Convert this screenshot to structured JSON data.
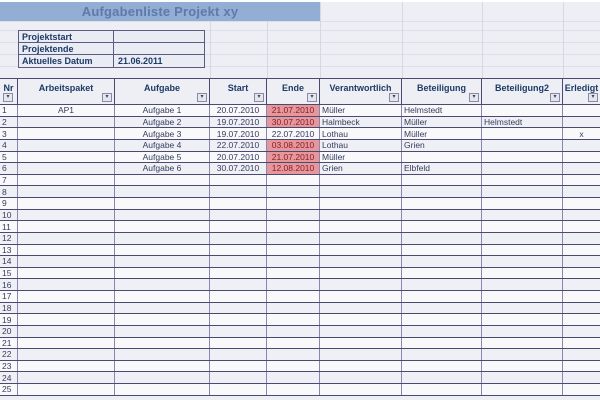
{
  "title_bar": {
    "text": "Aufgabenliste Projekt xy"
  },
  "info_box": {
    "rows": [
      {
        "label": "Projektstart",
        "value": ""
      },
      {
        "label": "Projektende",
        "value": ""
      },
      {
        "label": "Aktuelles Datum",
        "value": "21.06.2011"
      }
    ]
  },
  "table": {
    "filter_icon": "▾",
    "columns": [
      {
        "key": "nr",
        "label": "Nr"
      },
      {
        "key": "arbeitspaket",
        "label": "Arbeitspaket"
      },
      {
        "key": "aufgabe",
        "label": "Aufgabe"
      },
      {
        "key": "start",
        "label": "Start"
      },
      {
        "key": "ende",
        "label": "Ende"
      },
      {
        "key": "verantwortlich",
        "label": "Verantwortlich"
      },
      {
        "key": "beteiligung",
        "label": "Beteiligung"
      },
      {
        "key": "beteiligung2",
        "label": "Beteiligung2"
      },
      {
        "key": "erledigt",
        "label": "Erledigt"
      }
    ],
    "rows": [
      {
        "cells": [
          "1",
          "AP1",
          "Aufgabe 1",
          "20.07.2010",
          "21.07.2010",
          "Müller",
          "Helmstedt",
          "",
          ""
        ],
        "ende_overdue": true
      },
      {
        "cells": [
          "2",
          "",
          "Aufgabe 2",
          "19.07.2010",
          "30.07.2010",
          "Halmbeck",
          "Müller",
          "Helmstedt",
          ""
        ],
        "ende_overdue": true
      },
      {
        "cells": [
          "3",
          "",
          "Aufgabe 3",
          "19.07.2010",
          "22.07.2010",
          "Lothau",
          "Müller",
          "",
          "x"
        ],
        "ende_overdue": false
      },
      {
        "cells": [
          "4",
          "",
          "Aufgabe 4",
          "22.07.2010",
          "03.08.2010",
          "Lothau",
          "Grien",
          "",
          ""
        ],
        "ende_overdue": true
      },
      {
        "cells": [
          "5",
          "",
          "Aufgabe 5",
          "20.07.2010",
          "21.07.2010",
          "Müller",
          "",
          "",
          ""
        ],
        "ende_overdue": true
      },
      {
        "cells": [
          "6",
          "",
          "Aufgabe 6",
          "30.07.2010",
          "12.08.2010",
          "Grien",
          "Elbfeld",
          "",
          ""
        ],
        "ende_overdue": true
      },
      {
        "cells": [
          "7",
          "",
          "",
          "",
          "",
          "",
          "",
          "",
          ""
        ],
        "ende_overdue": false
      },
      {
        "cells": [
          "8",
          "",
          "",
          "",
          "",
          "",
          "",
          "",
          ""
        ],
        "ende_overdue": false
      },
      {
        "cells": [
          "9",
          "",
          "",
          "",
          "",
          "",
          "",
          "",
          ""
        ],
        "ende_overdue": false
      },
      {
        "cells": [
          "10",
          "",
          "",
          "",
          "",
          "",
          "",
          "",
          ""
        ],
        "ende_overdue": false
      },
      {
        "cells": [
          "11",
          "",
          "",
          "",
          "",
          "",
          "",
          "",
          ""
        ],
        "ende_overdue": false
      },
      {
        "cells": [
          "12",
          "",
          "",
          "",
          "",
          "",
          "",
          "",
          ""
        ],
        "ende_overdue": false
      },
      {
        "cells": [
          "13",
          "",
          "",
          "",
          "",
          "",
          "",
          "",
          ""
        ],
        "ende_overdue": false
      },
      {
        "cells": [
          "14",
          "",
          "",
          "",
          "",
          "",
          "",
          "",
          ""
        ],
        "ende_overdue": false
      },
      {
        "cells": [
          "15",
          "",
          "",
          "",
          "",
          "",
          "",
          "",
          ""
        ],
        "ende_overdue": false
      },
      {
        "cells": [
          "16",
          "",
          "",
          "",
          "",
          "",
          "",
          "",
          ""
        ],
        "ende_overdue": false
      },
      {
        "cells": [
          "17",
          "",
          "",
          "",
          "",
          "",
          "",
          "",
          ""
        ],
        "ende_overdue": false
      },
      {
        "cells": [
          "18",
          "",
          "",
          "",
          "",
          "",
          "",
          "",
          ""
        ],
        "ende_overdue": false
      },
      {
        "cells": [
          "19",
          "",
          "",
          "",
          "",
          "",
          "",
          "",
          ""
        ],
        "ende_overdue": false
      },
      {
        "cells": [
          "20",
          "",
          "",
          "",
          "",
          "",
          "",
          "",
          ""
        ],
        "ende_overdue": false
      },
      {
        "cells": [
          "21",
          "",
          "",
          "",
          "",
          "",
          "",
          "",
          ""
        ],
        "ende_overdue": false
      },
      {
        "cells": [
          "22",
          "",
          "",
          "",
          "",
          "",
          "",
          "",
          ""
        ],
        "ende_overdue": false
      },
      {
        "cells": [
          "23",
          "",
          "",
          "",
          "",
          "",
          "",
          "",
          ""
        ],
        "ende_overdue": false
      },
      {
        "cells": [
          "24",
          "",
          "",
          "",
          "",
          "",
          "",
          "",
          ""
        ],
        "ende_overdue": false
      },
      {
        "cells": [
          "25",
          "",
          "",
          "",
          "",
          "",
          "",
          "",
          ""
        ],
        "ende_overdue": false
      }
    ]
  },
  "colors": {
    "title_bar_bg": "#92aed4",
    "title_bar_text": "#5f7aa8",
    "header_text": "#1d3a66",
    "overdue_bg": "#e6979b",
    "overdue_text": "#8b1d23"
  }
}
